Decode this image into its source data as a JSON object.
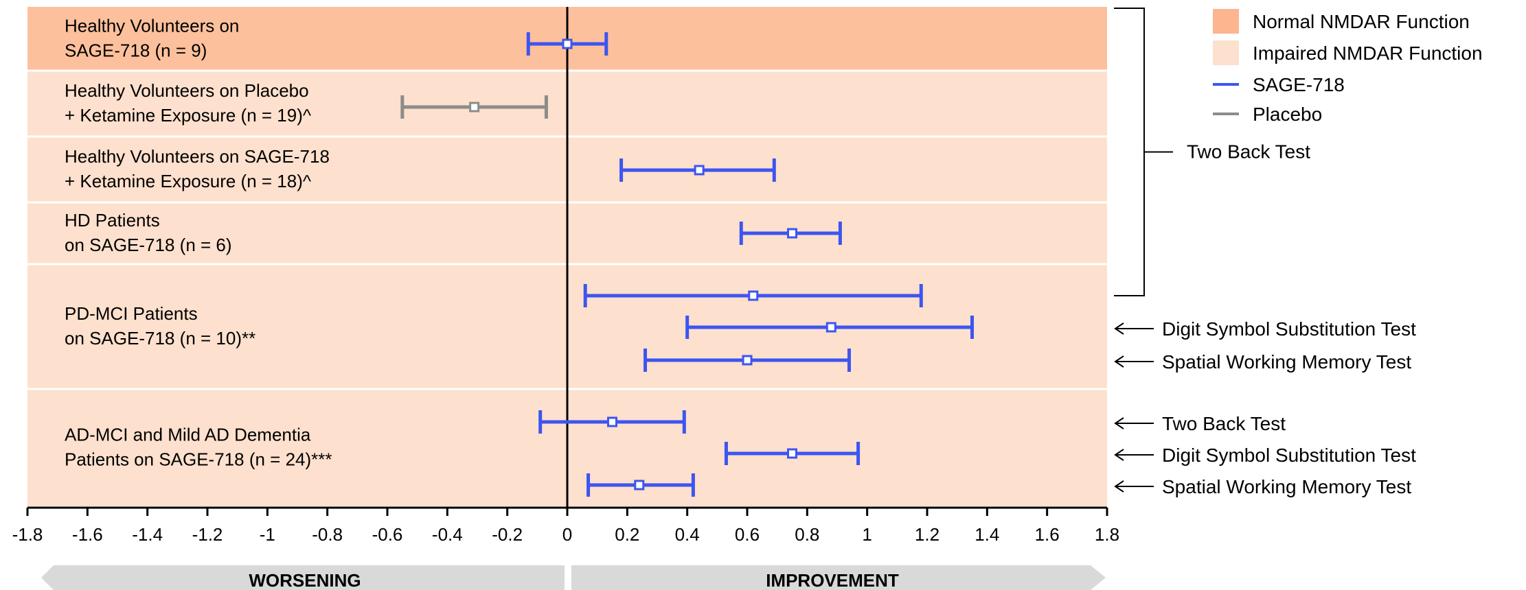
{
  "chart_data": {
    "type": "forest",
    "xlim": [
      -1.8,
      1.8
    ],
    "xticks": [
      "-1.8",
      "-1.6",
      "-1.4",
      "-1.2",
      "-1",
      "-0.8",
      "-0.6",
      "-0.4",
      "-0.2",
      "0",
      "0.2",
      "0.4",
      "0.6",
      "0.8",
      "1",
      "1.2",
      "1.4",
      "1.6",
      "1.8"
    ],
    "bands": [
      {
        "lines": [
          "Healthy Volunteers on",
          "SAGE-718 (n = 9)"
        ],
        "function": "normal"
      },
      {
        "lines": [
          "Healthy Volunteers on Placebo",
          "+ Ketamine Exposure (n = 19)^"
        ],
        "function": "impaired"
      },
      {
        "lines": [
          "Healthy Volunteers on SAGE-718",
          "+ Ketamine Exposure (n = 18)^"
        ],
        "function": "impaired"
      },
      {
        "lines": [
          "HD Patients",
          "on SAGE-718 (n = 6)"
        ],
        "function": "impaired"
      },
      {
        "lines": [
          "PD-MCI Patients",
          "on SAGE-718 (n = 10)**"
        ],
        "function": "impaired"
      },
      {
        "lines": [
          "AD-MCI and Mild AD Dementia",
          "Patients on SAGE-718 (n = 24)***"
        ],
        "function": "impaired"
      }
    ],
    "estimates": [
      {
        "band": 0,
        "test": "Two Back Test",
        "series": "SAGE-718",
        "point": 0.0,
        "low": -0.13,
        "high": 0.13
      },
      {
        "band": 1,
        "test": "Two Back Test",
        "series": "Placebo",
        "point": -0.31,
        "low": -0.55,
        "high": -0.07
      },
      {
        "band": 2,
        "test": "Two Back Test",
        "series": "SAGE-718",
        "point": 0.44,
        "low": 0.18,
        "high": 0.69
      },
      {
        "band": 3,
        "test": "Two Back Test",
        "series": "SAGE-718",
        "point": 0.75,
        "low": 0.58,
        "high": 0.91
      },
      {
        "band": 4,
        "test": "Two Back Test",
        "series": "SAGE-718",
        "point": 0.62,
        "low": 0.06,
        "high": 1.18
      },
      {
        "band": 4,
        "test": "Digit Symbol Substitution Test",
        "series": "SAGE-718",
        "point": 0.88,
        "low": 0.4,
        "high": 1.35
      },
      {
        "band": 4,
        "test": "Spatial Working Memory Test",
        "series": "SAGE-718",
        "point": 0.6,
        "low": 0.26,
        "high": 0.94
      },
      {
        "band": 5,
        "test": "Two Back Test",
        "series": "SAGE-718",
        "point": 0.15,
        "low": -0.09,
        "high": 0.39
      },
      {
        "band": 5,
        "test": "Digit Symbol Substitution Test",
        "series": "SAGE-718",
        "point": 0.75,
        "low": 0.53,
        "high": 0.97
      },
      {
        "band": 5,
        "test": "Spatial Working Memory Test",
        "series": "SAGE-718",
        "point": 0.24,
        "low": 0.07,
        "high": 0.42
      }
    ],
    "bracket_label": "Two Back Test",
    "row_annotations": [
      {
        "band": 4,
        "text": "Digit Symbol Substitution Test"
      },
      {
        "band": 4,
        "text": "Spatial Working Memory Test"
      },
      {
        "band": 5,
        "text": "Two Back Test"
      },
      {
        "band": 5,
        "text": "Digit Symbol Substitution Test"
      },
      {
        "band": 5,
        "text": "Spatial Working Memory Test"
      }
    ],
    "legend": {
      "placement": "top-right",
      "items": [
        {
          "label": "Normal NMDAR Function",
          "kind": "swatch",
          "color": "#fdb58f"
        },
        {
          "label": "Impaired NMDAR Function",
          "kind": "swatch",
          "color": "#fde0cd"
        },
        {
          "label": "SAGE-718",
          "kind": "line",
          "color": "#3d55f0"
        },
        {
          "label": "Placebo",
          "kind": "line",
          "color": "#8c8c8c"
        }
      ]
    },
    "direction_labels": {
      "left": "WORSENING",
      "right": "IMPROVEMENT"
    },
    "colors": {
      "normal": "#fdc09c",
      "impaired": "#fde0cd",
      "sage": "#3d55f0",
      "placebo": "#8c8c8c",
      "arrow_band": "#d9d9d9"
    }
  }
}
